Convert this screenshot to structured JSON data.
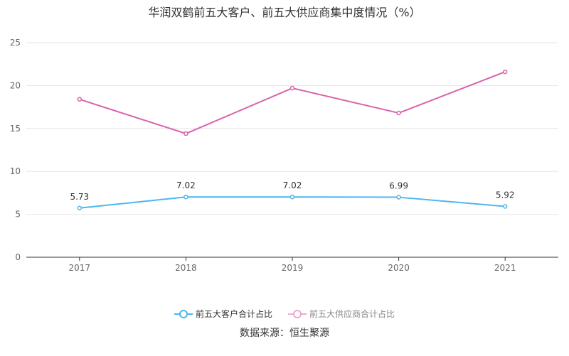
{
  "chart_data": {
    "type": "line",
    "title": "华润双鹤前五大客户、前五大供应商集中度情况（%）",
    "categories": [
      "2017",
      "2018",
      "2019",
      "2020",
      "2021"
    ],
    "ylim": [
      0,
      25
    ],
    "yticks": [
      0,
      5,
      10,
      15,
      20,
      25
    ],
    "grid": true,
    "legend_position": "bottom",
    "series": [
      {
        "name": "前五大客户合计占比",
        "color": "#4db6ee",
        "values": [
          5.73,
          7.02,
          7.02,
          6.99,
          5.92
        ],
        "data_labels": [
          "5.73",
          "7.02",
          "7.02",
          "6.99",
          "5.92"
        ]
      },
      {
        "name": "前五大供应商合计占比",
        "color": "#d963ac",
        "values": [
          18.4,
          14.4,
          19.7,
          16.8,
          21.6
        ]
      }
    ]
  },
  "source": "数据来源：恒生聚源"
}
